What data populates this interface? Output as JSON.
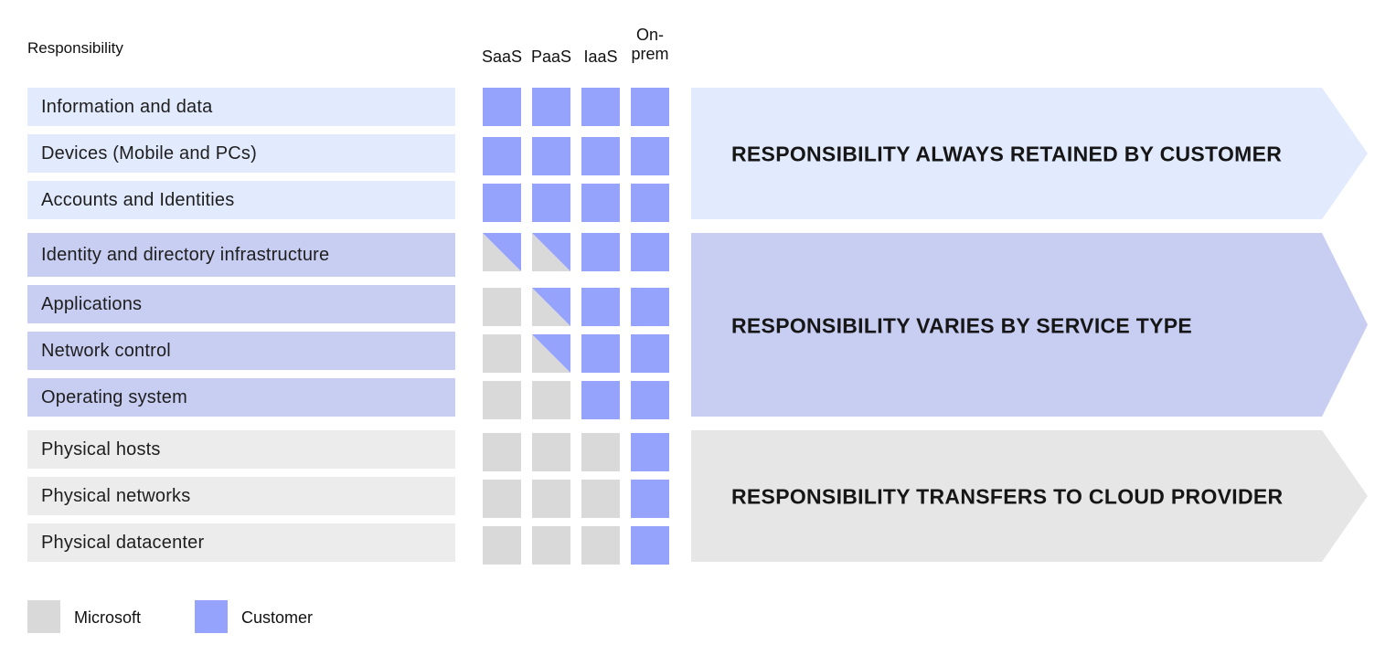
{
  "colors": {
    "microsoft": "#d9d9d9",
    "customer": "#95a3fd",
    "group1_bg": "#e2eafe",
    "group2_bg": "#c8cdf2",
    "group3_bg": "#ececec",
    "arrow1": "#e2eafe",
    "arrow2": "#c8cdf2",
    "arrow3": "#e6e6e6"
  },
  "header": {
    "responsibility": "Responsibility",
    "columns": [
      "SaaS",
      "PaaS",
      "IaaS",
      "On-\nprem"
    ]
  },
  "rows": [
    {
      "label": "Information and data",
      "group": 1,
      "cells": [
        "C",
        "C",
        "C",
        "C"
      ]
    },
    {
      "label": "Devices (Mobile and PCs)",
      "group": 1,
      "cells": [
        "C",
        "C",
        "C",
        "C"
      ]
    },
    {
      "label": "Accounts and Identities",
      "group": 1,
      "cells": [
        "C",
        "C",
        "C",
        "C"
      ]
    },
    {
      "label": "Identity and directory infrastructure",
      "group": 2,
      "cells": [
        "S",
        "S",
        "C",
        "C"
      ]
    },
    {
      "label": "Applications",
      "group": 2,
      "cells": [
        "M",
        "S",
        "C",
        "C"
      ]
    },
    {
      "label": "Network control",
      "group": 2,
      "cells": [
        "M",
        "S",
        "C",
        "C"
      ]
    },
    {
      "label": "Operating system",
      "group": 2,
      "cells": [
        "M",
        "M",
        "C",
        "C"
      ]
    },
    {
      "label": "Physical hosts",
      "group": 3,
      "cells": [
        "M",
        "M",
        "M",
        "C"
      ]
    },
    {
      "label": "Physical networks",
      "group": 3,
      "cells": [
        "M",
        "M",
        "M",
        "C"
      ]
    },
    {
      "label": "Physical datacenter",
      "group": 3,
      "cells": [
        "M",
        "M",
        "M",
        "C"
      ]
    }
  ],
  "arrows": [
    {
      "text": "RESPONSIBILITY ALWAYS RETAINED BY CUSTOMER",
      "group": 1
    },
    {
      "text": "RESPONSIBILITY VARIES BY SERVICE TYPE",
      "group": 2
    },
    {
      "text": "RESPONSIBILITY TRANSFERS TO CLOUD PROVIDER",
      "group": 3
    }
  ],
  "legend": [
    {
      "label": "Microsoft",
      "kind": "M"
    },
    {
      "label": "Customer",
      "kind": "C"
    }
  ]
}
